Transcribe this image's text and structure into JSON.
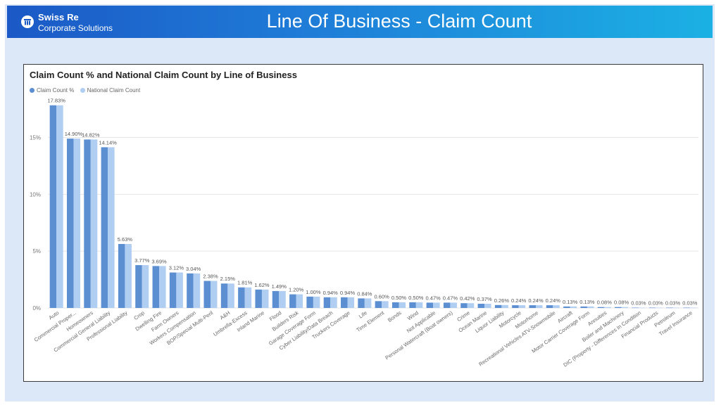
{
  "header": {
    "brand_name": "Swiss Re",
    "brand_sub": "Corporate Solutions",
    "title": "Line Of Business - Claim Count"
  },
  "colors": {
    "series1": "#5b8fd2",
    "series2": "#b0cdf2",
    "header_start": "#1b59c6",
    "header_end": "#1bb1e4",
    "background": "#dce7f7"
  },
  "chart_data": {
    "type": "bar",
    "title": "Claim Count % and National Claim Count by Line of Business",
    "legend_position": "top-left",
    "grid": true,
    "ylim": [
      0,
      18
    ],
    "yticks": [
      "0%",
      "5%",
      "10%",
      "15%"
    ],
    "categories": [
      "Auto",
      "Commercial Proper...",
      "Homeowners",
      "Commercial General Liability",
      "Professional Liability",
      "Crop",
      "Dwelling Fire",
      "Farm Owners",
      "Workers Compensation",
      "BOP/Special Multi-Peril",
      "A&H",
      "Umbrella-Excess",
      "Inland Marine",
      "Flood",
      "Builders Risk",
      "Garage Coverage Form",
      "Cyber Liability/Data Breach",
      "Truckers Coverage",
      "Life",
      "Time Element",
      "Bonds",
      "Wind",
      "Not Applicable",
      "Personal Watercraft (Boat owners)",
      "Crime",
      "Ocean Marine",
      "Liquor Liability",
      "Motorcycle",
      "Motorhome",
      "Recreational Vehicles ATV-Snowmobile",
      "Aircraft",
      "Motor Carrier Coverage Form",
      "Annuities",
      "Boiler and Machinery",
      "DIC (Property - Differences In Condition",
      "Financial Products",
      "Petroleum",
      "Travel Insurance"
    ],
    "series": [
      {
        "name": "Claim Count %",
        "values": [
          17.83,
          14.9,
          14.82,
          14.14,
          5.63,
          3.77,
          3.69,
          3.12,
          3.04,
          2.38,
          2.15,
          1.81,
          1.62,
          1.49,
          1.2,
          1.0,
          0.94,
          0.94,
          0.84,
          0.6,
          0.5,
          0.5,
          0.47,
          0.47,
          0.42,
          0.37,
          0.26,
          0.24,
          0.24,
          0.24,
          0.13,
          0.13,
          0.08,
          0.08,
          0.03,
          0.03,
          0.03,
          0.03
        ]
      },
      {
        "name": "National Claim Count",
        "values": [
          17.83,
          14.9,
          14.82,
          14.14,
          5.63,
          3.77,
          3.69,
          3.12,
          3.04,
          2.38,
          2.15,
          1.81,
          1.62,
          1.49,
          1.2,
          1.0,
          0.94,
          0.94,
          0.84,
          0.6,
          0.5,
          0.5,
          0.47,
          0.47,
          0.42,
          0.37,
          0.26,
          0.24,
          0.24,
          0.24,
          0.13,
          0.13,
          0.08,
          0.08,
          0.03,
          0.03,
          0.03,
          0.03
        ]
      }
    ],
    "data_labels": [
      "17.83%",
      "14.90%",
      "14.82%",
      "14.14%",
      "5.63%",
      "3.77%",
      "3.69%",
      "3.12%",
      "3.04%",
      "2.38%",
      "2.15%",
      "1.81%",
      "1.62%",
      "1.49%",
      "1.20%",
      "1.00%",
      "0.94%",
      "0.94%",
      "0.84%",
      "0.60%",
      "0.50%",
      "0.50%",
      "0.47%",
      "0.47%",
      "0.42%",
      "0.37%",
      "0.26%",
      "0.24%",
      "0.24%",
      "0.24%",
      "0.13%",
      "0.13%",
      "0.08%",
      "0.08%",
      "0.03%",
      "0.03%",
      "0.03%",
      "0.03%"
    ]
  }
}
